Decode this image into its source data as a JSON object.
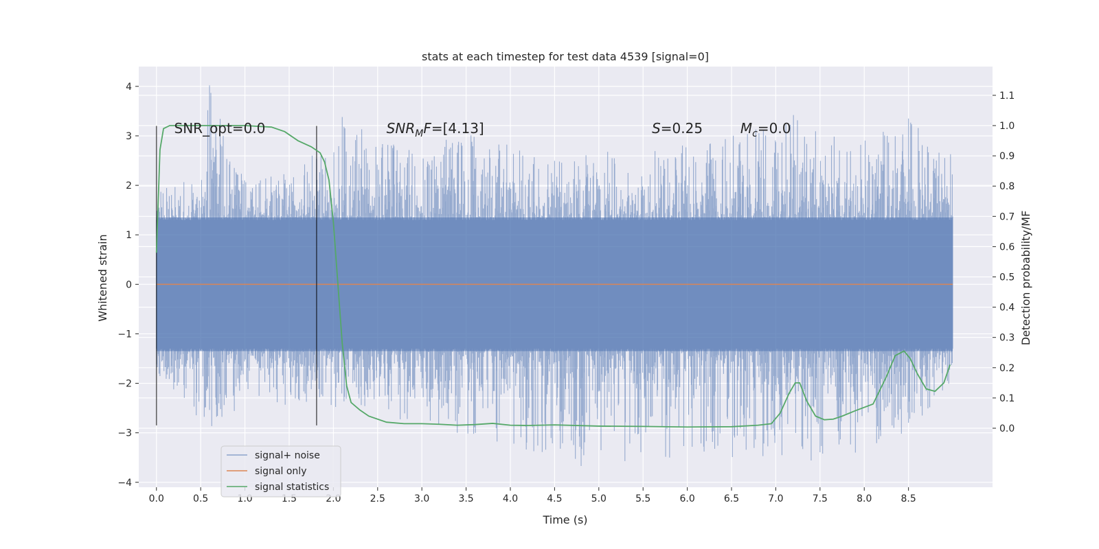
{
  "chart_data": {
    "type": "line",
    "title": "stats at each timestep for test data 4539 [signal=0]",
    "xlabel": "Time (s)",
    "ylabel_left": "Whitened strain",
    "ylabel_right": "Detection probability/MF",
    "xlim": [
      -0.2,
      9.45
    ],
    "ylim_left": [
      -4.1,
      4.4
    ],
    "ylim_right": [
      -0.195,
      1.195
    ],
    "x_ticks": [
      "0.0",
      "0.5",
      "1.0",
      "1.5",
      "2.0",
      "2.5",
      "3.0",
      "3.5",
      "4.0",
      "4.5",
      "5.0",
      "5.5",
      "6.0",
      "6.5",
      "7.0",
      "7.5",
      "8.0",
      "8.5"
    ],
    "x_tick_values": [
      0.0,
      0.5,
      1.0,
      1.5,
      2.0,
      2.5,
      3.0,
      3.5,
      4.0,
      4.5,
      5.0,
      5.5,
      6.0,
      6.5,
      7.0,
      7.5,
      8.0,
      8.5
    ],
    "y_left_ticks": [
      "4",
      "3",
      "2",
      "1",
      "0",
      "−1",
      "−2",
      "−3",
      "−4"
    ],
    "y_left_tick_values": [
      4,
      3,
      2,
      1,
      0,
      -1,
      -2,
      -3,
      -4
    ],
    "y_right_ticks": [
      "1.1",
      "1.0",
      "0.9",
      "0.8",
      "0.7",
      "0.6",
      "0.5",
      "0.4",
      "0.3",
      "0.2",
      "0.1",
      "0.0"
    ],
    "y_right_tick_values": [
      1.1,
      1.0,
      0.9,
      0.8,
      0.7,
      0.6,
      0.5,
      0.4,
      0.3,
      0.2,
      0.1,
      0.0
    ],
    "grid": true,
    "legend_position": "lower-left",
    "series": [
      {
        "name": "signal+ noise",
        "axis": "left",
        "color": "#4c72b0",
        "style": "dense noise band",
        "x_range": [
          0.0,
          9.0
        ],
        "envelope_upper": [
          [
            0.0,
            1.9
          ],
          [
            0.5,
            2.2
          ],
          [
            0.6,
            4.02
          ],
          [
            1.0,
            2.1
          ],
          [
            1.5,
            2.3
          ],
          [
            2.1,
            3.38
          ],
          [
            3.0,
            2.6
          ],
          [
            3.6,
            3.3
          ],
          [
            4.4,
            2.5
          ],
          [
            5.0,
            2.7
          ],
          [
            6.3,
            2.9
          ],
          [
            7.2,
            3.42
          ],
          [
            8.0,
            2.9
          ],
          [
            8.5,
            3.35
          ],
          [
            9.0,
            2.6
          ]
        ],
        "envelope_lower": [
          [
            0.0,
            -1.9
          ],
          [
            0.6,
            -2.95
          ],
          [
            1.0,
            -2.4
          ],
          [
            2.1,
            -2.5
          ],
          [
            3.4,
            -3.0
          ],
          [
            4.8,
            -3.67
          ],
          [
            5.8,
            -3.5
          ],
          [
            7.4,
            -3.56
          ],
          [
            7.9,
            -3.4
          ],
          [
            8.6,
            -2.9
          ],
          [
            9.0,
            -1.9
          ]
        ]
      },
      {
        "name": "signal only",
        "axis": "left",
        "color": "#dd8452",
        "x": [
          0.0,
          9.0
        ],
        "y": [
          0.0,
          0.0
        ]
      },
      {
        "name": "signal statistics",
        "axis": "right",
        "color": "#55a868",
        "x": [
          0.0,
          0.04,
          0.08,
          0.15,
          0.3,
          0.6,
          1.0,
          1.3,
          1.45,
          1.6,
          1.75,
          1.85,
          1.9,
          1.95,
          2.0,
          2.05,
          2.1,
          2.15,
          2.2,
          2.3,
          2.4,
          2.6,
          2.8,
          3.0,
          3.2,
          3.4,
          3.6,
          3.8,
          4.0,
          4.2,
          4.5,
          5.0,
          5.5,
          6.0,
          6.5,
          6.8,
          6.95,
          7.05,
          7.15,
          7.22,
          7.27,
          7.35,
          7.45,
          7.55,
          7.65,
          7.75,
          7.9,
          8.1,
          8.25,
          8.35,
          8.45,
          8.52,
          8.6,
          8.7,
          8.8,
          8.9,
          8.97
        ],
        "y": [
          0.58,
          0.92,
          0.99,
          1.0,
          1.0,
          1.0,
          1.0,
          0.995,
          0.98,
          0.95,
          0.93,
          0.91,
          0.88,
          0.82,
          0.68,
          0.48,
          0.28,
          0.14,
          0.085,
          0.06,
          0.04,
          0.02,
          0.015,
          0.015,
          0.013,
          0.01,
          0.012,
          0.016,
          0.01,
          0.009,
          0.011,
          0.007,
          0.006,
          0.004,
          0.005,
          0.01,
          0.015,
          0.05,
          0.115,
          0.15,
          0.15,
          0.09,
          0.04,
          0.028,
          0.03,
          0.04,
          0.058,
          0.08,
          0.17,
          0.24,
          0.255,
          0.23,
          0.18,
          0.13,
          0.122,
          0.15,
          0.21
        ]
      }
    ],
    "vertical_markers": [
      {
        "x": 0.0,
        "y_range": [
          -2.85,
          3.2
        ],
        "color": "#000000"
      },
      {
        "x": 1.81,
        "y_range": [
          -2.85,
          3.2
        ],
        "color": "#000000"
      }
    ],
    "annotations": [
      {
        "kind": "plain",
        "text": "SNR_opt=0.0",
        "x": 0.2,
        "y": 3.15
      },
      {
        "kind": "snr_mf",
        "main": "SNR",
        "sub": "M",
        "rest": "F=[4.13]",
        "x": 2.6,
        "y": 3.15
      },
      {
        "kind": "italic_var",
        "main": "S",
        "rest": "=0.25",
        "x": 5.6,
        "y": 3.15
      },
      {
        "kind": "mc",
        "main": "M",
        "sub": "c",
        "rest": "=0.0",
        "x": 6.6,
        "y": 3.15
      }
    ]
  },
  "colors": {
    "plot_background": "#eaeaf2",
    "grid": "#ffffff",
    "text": "#262626"
  }
}
